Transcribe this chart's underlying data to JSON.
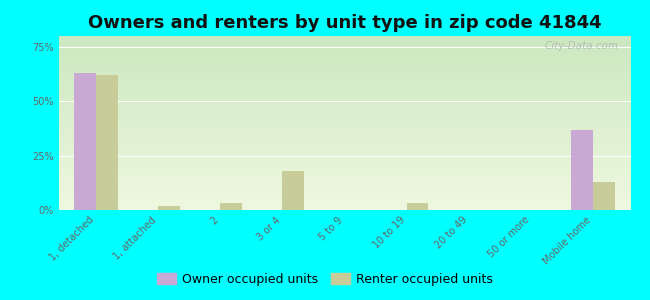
{
  "title": "Owners and renters by unit type in zip code 41844",
  "categories": [
    "1, detached",
    "1, attached",
    "2",
    "3 or 4",
    "5 to 9",
    "10 to 19",
    "20 to 49",
    "50 or more",
    "Mobile home"
  ],
  "owner_values": [
    63,
    0,
    0,
    0,
    0,
    0,
    0,
    0,
    37
  ],
  "renter_values": [
    62,
    2,
    3,
    18,
    0,
    3,
    0,
    0,
    13
  ],
  "owner_color": "#c9a8d4",
  "renter_color": "#c8cc99",
  "bg_color": "#00ffff",
  "ylabel_values": [
    "0%",
    "25%",
    "50%",
    "75%"
  ],
  "yticks": [
    0,
    25,
    50,
    75
  ],
  "ylim": [
    0,
    80
  ],
  "bar_width": 0.35,
  "title_fontsize": 13,
  "tick_fontsize": 7,
  "legend_fontsize": 9,
  "watermark": "City-Data.com"
}
